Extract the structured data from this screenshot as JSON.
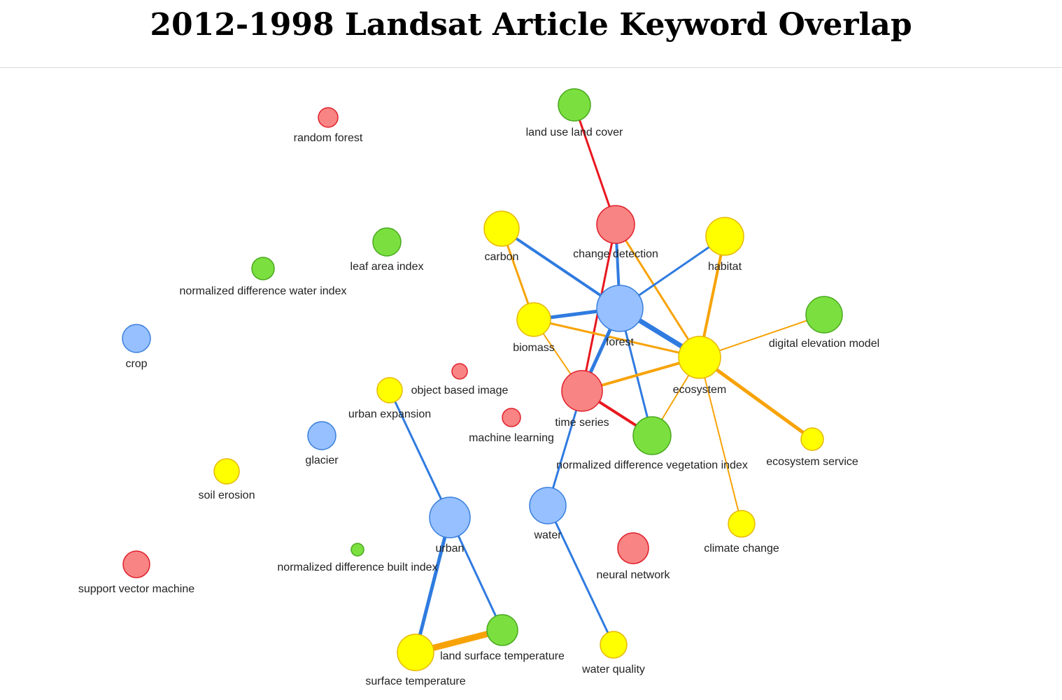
{
  "title": "2012-1998 Landsat Article Keyword Overlap",
  "palette": {
    "red": {
      "fill": "#f88484",
      "stroke": "#e0202a"
    },
    "blue": {
      "fill": "#96c0ff",
      "stroke": "#3a7fdd"
    },
    "green": {
      "fill": "#7be03f",
      "stroke": "#4aa81f"
    },
    "yellow": {
      "fill": "#ffff00",
      "stroke": "#e6b800"
    }
  },
  "edge_colors": {
    "red": "#e8171e",
    "blue": "#2f7be0",
    "orange": "#f7a308"
  },
  "nodes": [
    {
      "id": "random-forest",
      "label": "random forest",
      "group": "red"
    },
    {
      "id": "land-use-land-cover",
      "label": "land use land cover",
      "group": "green"
    },
    {
      "id": "leaf-area-index",
      "label": "leaf area index",
      "group": "green"
    },
    {
      "id": "ndwi",
      "label": "normalized difference water index",
      "group": "green"
    },
    {
      "id": "carbon",
      "label": "carbon",
      "group": "yellow"
    },
    {
      "id": "change-detection",
      "label": "change detection",
      "group": "red"
    },
    {
      "id": "habitat",
      "label": "habitat",
      "group": "yellow"
    },
    {
      "id": "crop",
      "label": "crop",
      "group": "blue"
    },
    {
      "id": "biomass",
      "label": "biomass",
      "group": "yellow"
    },
    {
      "id": "forest",
      "label": "forest",
      "group": "blue"
    },
    {
      "id": "digital-elevation-model",
      "label": "digital elevation model",
      "group": "green"
    },
    {
      "id": "ecosystem",
      "label": "ecosystem",
      "group": "yellow"
    },
    {
      "id": "object-based-image",
      "label": "object based image",
      "group": "red"
    },
    {
      "id": "urban-expansion",
      "label": "urban expansion",
      "group": "yellow"
    },
    {
      "id": "time-series",
      "label": "time series",
      "group": "red"
    },
    {
      "id": "machine-learning",
      "label": "machine learning",
      "group": "red"
    },
    {
      "id": "ndvi",
      "label": "normalized difference vegetation index",
      "group": "green"
    },
    {
      "id": "ecosystem-service",
      "label": "ecosystem service",
      "group": "yellow"
    },
    {
      "id": "glacier",
      "label": "glacier",
      "group": "blue"
    },
    {
      "id": "soil-erosion",
      "label": "soil erosion",
      "group": "yellow"
    },
    {
      "id": "urban",
      "label": "urban",
      "group": "blue"
    },
    {
      "id": "water",
      "label": "water",
      "group": "blue"
    },
    {
      "id": "climate-change",
      "label": "climate change",
      "group": "yellow"
    },
    {
      "id": "neural-network",
      "label": "neural network",
      "group": "red"
    },
    {
      "id": "ndbi",
      "label": "normalized difference built index",
      "group": "green"
    },
    {
      "id": "support-vector-machine",
      "label": "support vector machine",
      "group": "red"
    },
    {
      "id": "land-surface-temperature",
      "label": "land surface temperature",
      "group": "green"
    },
    {
      "id": "surface-temperature",
      "label": "surface temperature",
      "group": "yellow"
    },
    {
      "id": "water-quality",
      "label": "water quality",
      "group": "yellow"
    }
  ],
  "edges": [
    {
      "source": "land-use-land-cover",
      "target": "change-detection",
      "color": "red"
    },
    {
      "source": "change-detection",
      "target": "forest",
      "color": "blue"
    },
    {
      "source": "change-detection",
      "target": "time-series",
      "color": "red"
    },
    {
      "source": "change-detection",
      "target": "ecosystem",
      "color": "orange"
    },
    {
      "source": "carbon",
      "target": "forest",
      "color": "blue"
    },
    {
      "source": "carbon",
      "target": "biomass",
      "color": "orange"
    },
    {
      "source": "habitat",
      "target": "forest",
      "color": "blue"
    },
    {
      "source": "habitat",
      "target": "ecosystem",
      "color": "orange"
    },
    {
      "source": "biomass",
      "target": "forest",
      "color": "blue"
    },
    {
      "source": "biomass",
      "target": "ecosystem",
      "color": "orange"
    },
    {
      "source": "biomass",
      "target": "time-series",
      "color": "orange"
    },
    {
      "source": "forest",
      "target": "ecosystem",
      "color": "blue"
    },
    {
      "source": "forest",
      "target": "time-series",
      "color": "blue"
    },
    {
      "source": "forest",
      "target": "ndvi",
      "color": "blue"
    },
    {
      "source": "digital-elevation-model",
      "target": "ecosystem",
      "color": "orange"
    },
    {
      "source": "ecosystem",
      "target": "time-series",
      "color": "orange"
    },
    {
      "source": "ecosystem",
      "target": "ndvi",
      "color": "orange"
    },
    {
      "source": "ecosystem",
      "target": "ecosystem-service",
      "color": "orange"
    },
    {
      "source": "ecosystem",
      "target": "climate-change",
      "color": "orange"
    },
    {
      "source": "time-series",
      "target": "ndvi",
      "color": "red"
    },
    {
      "source": "time-series",
      "target": "water",
      "color": "blue"
    },
    {
      "source": "urban-expansion",
      "target": "urban",
      "color": "blue"
    },
    {
      "source": "urban",
      "target": "surface-temperature",
      "color": "blue"
    },
    {
      "source": "urban",
      "target": "land-surface-temperature",
      "color": "blue"
    },
    {
      "source": "surface-temperature",
      "target": "land-surface-temperature",
      "color": "orange"
    },
    {
      "source": "water",
      "target": "water-quality",
      "color": "blue"
    }
  ]
}
